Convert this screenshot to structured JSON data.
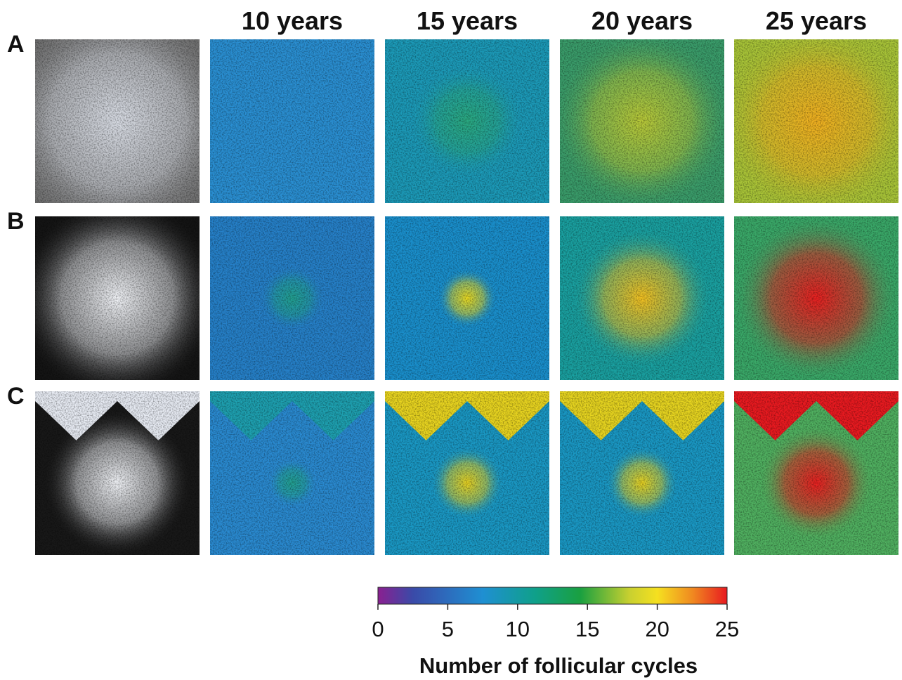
{
  "figure": {
    "column_headers": [
      "10 years",
      "15 years",
      "20 years",
      "25 years"
    ],
    "row_labels": [
      "A",
      "B",
      "C"
    ],
    "colorbar": {
      "lim": [
        0,
        25
      ],
      "ticks": [
        0,
        5,
        10,
        15,
        20,
        25
      ],
      "label": "Number of follicular cycles"
    }
  }
}
